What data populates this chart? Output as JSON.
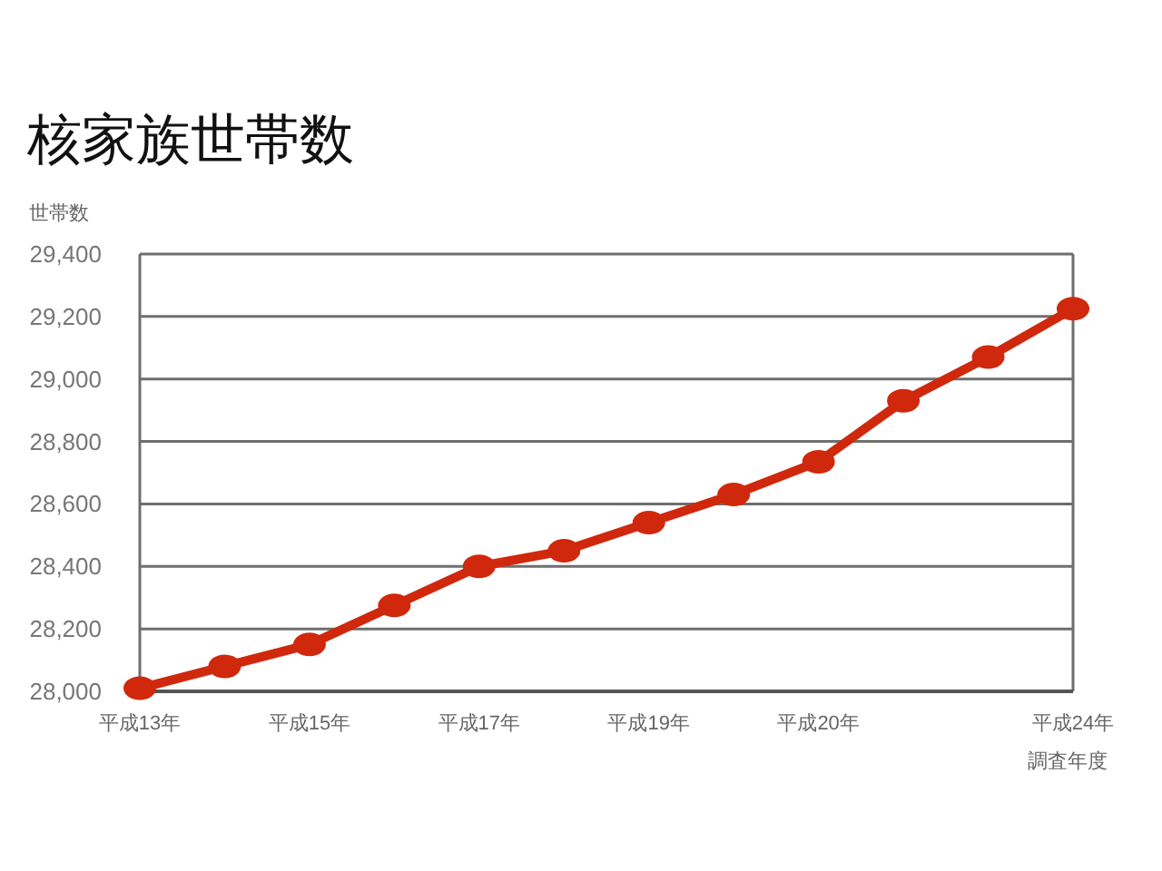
{
  "chart_data": {
    "type": "line",
    "title": "核家族世帯数",
    "ylabel": "世帯数",
    "xlabel": "調査年度",
    "categories": [
      "平成13年",
      null,
      "平成15年",
      null,
      "平成17年",
      null,
      "平成19年",
      null,
      "平成20年",
      null,
      null,
      "平成24年"
    ],
    "series": [
      {
        "color": "#d0280c",
        "values": [
          28010,
          28080,
          28150,
          28275,
          28400,
          28450,
          28540,
          28630,
          28735,
          28930,
          29070,
          29225
        ]
      }
    ],
    "ylim": [
      28000,
      29400
    ],
    "yticks": [
      {
        "value": 28000,
        "label": "28,000"
      },
      {
        "value": 28200,
        "label": "28,200"
      },
      {
        "value": 28400,
        "label": "28,400"
      },
      {
        "value": 28600,
        "label": "28,600"
      },
      {
        "value": 28800,
        "label": "28,800"
      },
      {
        "value": 29000,
        "label": "29,000"
      },
      {
        "value": 29200,
        "label": "29,200"
      },
      {
        "value": 29400,
        "label": "29,400"
      }
    ],
    "grid": "y",
    "marker": "circle",
    "line_style": "solid"
  }
}
